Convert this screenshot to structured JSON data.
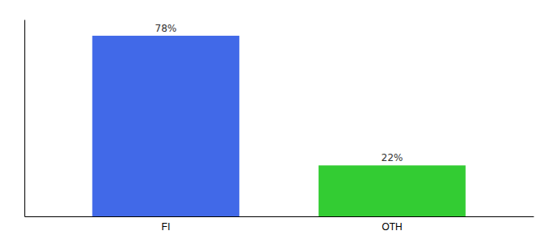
{
  "chart_data": {
    "type": "bar",
    "categories": [
      "FI",
      "OTH"
    ],
    "values": [
      78,
      22
    ],
    "value_labels": [
      "78%",
      "22%"
    ],
    "colors": [
      "#4169e8",
      "#33cc33"
    ],
    "ylim": [
      0,
      85
    ],
    "data_labels": true,
    "grid": false,
    "tick_labels": "x"
  }
}
